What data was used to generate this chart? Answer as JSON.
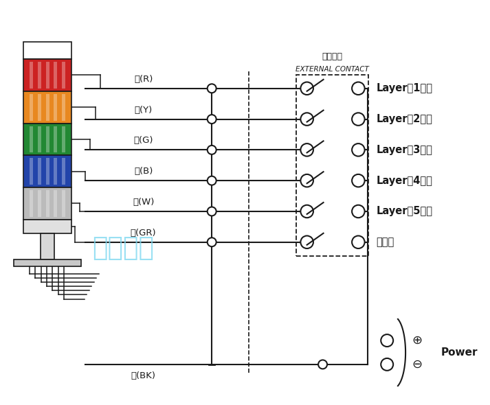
{
  "bg_color": "#ffffff",
  "lc": "#1a1a1a",
  "lamp_colors": [
    "#cc2222",
    "#e88820",
    "#228833",
    "#2244aa",
    "#bbbbbb"
  ],
  "wire_labels": [
    "红(R)",
    "黄(Y)",
    "绿(G)",
    "蓝(B)",
    "白(W)",
    "灰(GR)"
  ],
  "layer_labels": [
    "Layer（1层）",
    "Layer（2层）",
    "Layer（3层）",
    "Layer（4层）",
    "Layer（5层）",
    "蜂鸣器"
  ],
  "power_label": "Power",
  "black_label": "黑(BK)",
  "external_cn": "外部接点",
  "external_en": "EXTERNAL CONTACT",
  "watermark": "启晰警灯"
}
